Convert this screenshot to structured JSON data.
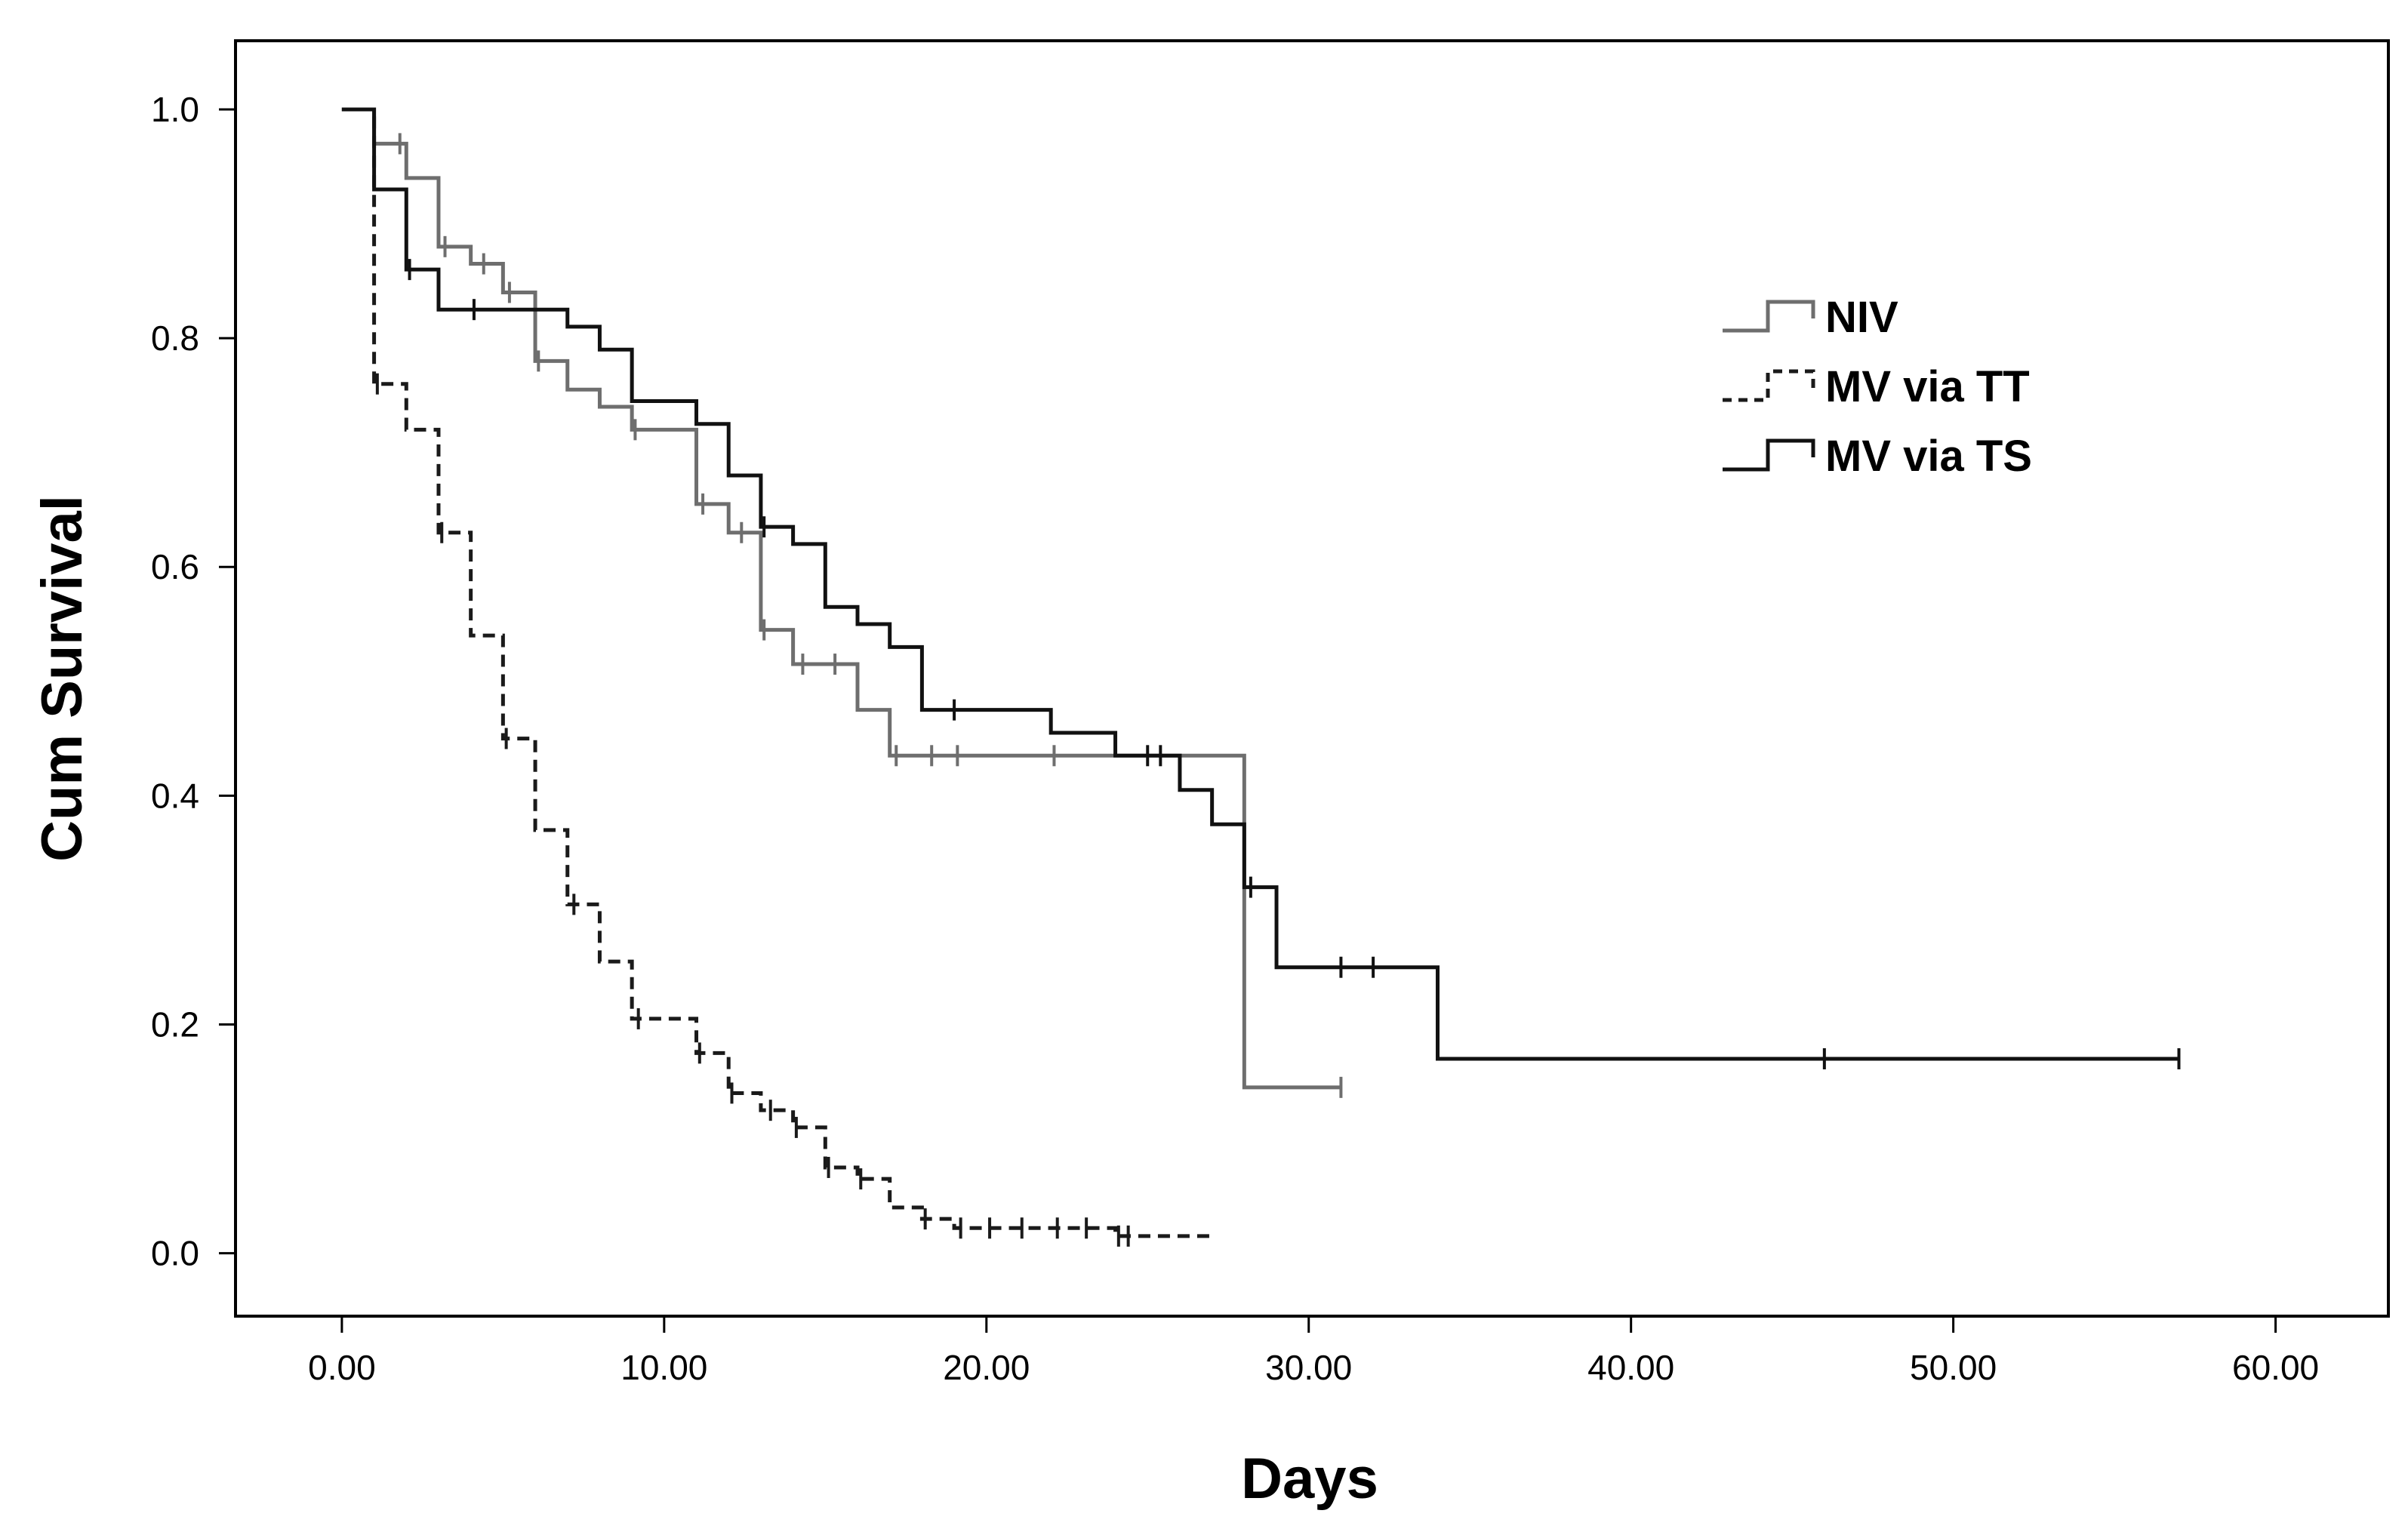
{
  "chart_data": {
    "type": "line",
    "subtype": "kaplan-meier",
    "title": "",
    "xlabel": "Days",
    "ylabel": "Cum Survival",
    "xlim": [
      -3.3,
      63.5
    ],
    "ylim": [
      -0.055,
      1.06
    ],
    "xticks": [
      0,
      10,
      20,
      30,
      40,
      50,
      60
    ],
    "xtick_labels": [
      "0.00",
      "10.00",
      "20.00",
      "30.00",
      "40.00",
      "50.00",
      "60.00"
    ],
    "yticks": [
      0,
      0.2,
      0.4,
      0.6,
      0.8,
      1.0
    ],
    "ytick_labels": [
      "0.0",
      "0.2",
      "0.4",
      "0.6",
      "0.8",
      "1.0"
    ],
    "grid": false,
    "legend_position": "top-right",
    "series": [
      {
        "name": "NIV",
        "color": "#6e6e6e",
        "dash": "solid",
        "steps": [
          [
            0,
            1.0
          ],
          [
            1,
            0.97
          ],
          [
            2,
            0.94
          ],
          [
            3,
            0.88
          ],
          [
            4,
            0.865
          ],
          [
            5,
            0.84
          ],
          [
            6,
            0.78
          ],
          [
            7,
            0.755
          ],
          [
            8,
            0.74
          ],
          [
            9,
            0.72
          ],
          [
            11,
            0.655
          ],
          [
            12,
            0.63
          ],
          [
            13,
            0.545
          ],
          [
            14,
            0.515
          ],
          [
            16,
            0.475
          ],
          [
            17,
            0.435
          ],
          [
            28,
            0.145
          ],
          [
            31,
            0.145
          ]
        ],
        "censored": [
          [
            1.8,
            0.97
          ],
          [
            3.2,
            0.88
          ],
          [
            4.4,
            0.865
          ],
          [
            5.2,
            0.84
          ],
          [
            6.1,
            0.78
          ],
          [
            9.1,
            0.72
          ],
          [
            11.2,
            0.655
          ],
          [
            12.4,
            0.63
          ],
          [
            13.1,
            0.545
          ],
          [
            14.3,
            0.515
          ],
          [
            15.3,
            0.515
          ],
          [
            17.2,
            0.435
          ],
          [
            18.3,
            0.435
          ],
          [
            19.1,
            0.435
          ],
          [
            22.1,
            0.435
          ],
          [
            31,
            0.145
          ]
        ]
      },
      {
        "name": "MV via TT",
        "color": "#1a1a1a",
        "dash": "dashed",
        "steps": [
          [
            0,
            1.0
          ],
          [
            1,
            0.76
          ],
          [
            2,
            0.72
          ],
          [
            3,
            0.63
          ],
          [
            4,
            0.54
          ],
          [
            5,
            0.45
          ],
          [
            6,
            0.37
          ],
          [
            7,
            0.305
          ],
          [
            8,
            0.255
          ],
          [
            9,
            0.205
          ],
          [
            11,
            0.175
          ],
          [
            12,
            0.14
          ],
          [
            13,
            0.125
          ],
          [
            14,
            0.11
          ],
          [
            15,
            0.075
          ],
          [
            16,
            0.065
          ],
          [
            17,
            0.04
          ],
          [
            18,
            0.03
          ],
          [
            19,
            0.022
          ],
          [
            24,
            0.015
          ],
          [
            27,
            0.012
          ]
        ],
        "censored": [
          [
            1.1,
            0.76
          ],
          [
            3.1,
            0.63
          ],
          [
            5.1,
            0.45
          ],
          [
            7.2,
            0.305
          ],
          [
            9.2,
            0.205
          ],
          [
            11.1,
            0.175
          ],
          [
            12.1,
            0.14
          ],
          [
            13.3,
            0.125
          ],
          [
            14.1,
            0.11
          ],
          [
            15.1,
            0.075
          ],
          [
            16.1,
            0.065
          ],
          [
            18.1,
            0.03
          ],
          [
            19.2,
            0.022
          ],
          [
            20.1,
            0.022
          ],
          [
            21.1,
            0.022
          ],
          [
            22.2,
            0.022
          ],
          [
            23.1,
            0.022
          ],
          [
            24.1,
            0.015
          ],
          [
            24.4,
            0.015
          ]
        ]
      },
      {
        "name": "MV via TS",
        "color": "#111111",
        "dash": "solid",
        "steps": [
          [
            0,
            1.0
          ],
          [
            1,
            0.93
          ],
          [
            2,
            0.86
          ],
          [
            3,
            0.825
          ],
          [
            7,
            0.81
          ],
          [
            8,
            0.79
          ],
          [
            9,
            0.745
          ],
          [
            11,
            0.725
          ],
          [
            12,
            0.68
          ],
          [
            13,
            0.635
          ],
          [
            14,
            0.62
          ],
          [
            15,
            0.565
          ],
          [
            16,
            0.55
          ],
          [
            17,
            0.53
          ],
          [
            18,
            0.475
          ],
          [
            22,
            0.455
          ],
          [
            24,
            0.435
          ],
          [
            26,
            0.405
          ],
          [
            27,
            0.375
          ],
          [
            28,
            0.32
          ],
          [
            29,
            0.25
          ],
          [
            34,
            0.17
          ],
          [
            57,
            0.17
          ]
        ],
        "censored": [
          [
            2.1,
            0.86
          ],
          [
            4.1,
            0.825
          ],
          [
            13.1,
            0.635
          ],
          [
            19,
            0.475
          ],
          [
            25,
            0.435
          ],
          [
            25.4,
            0.435
          ],
          [
            28.2,
            0.32
          ],
          [
            31,
            0.25
          ],
          [
            32,
            0.25
          ],
          [
            46,
            0.17
          ],
          [
            57,
            0.17
          ]
        ]
      }
    ]
  }
}
